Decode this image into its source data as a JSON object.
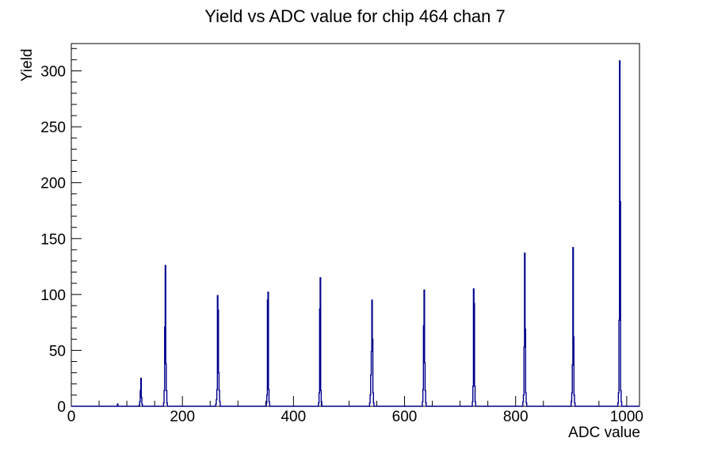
{
  "title": "Yield vs ADC value for chip 464 chan 7",
  "chart_data": {
    "type": "bar",
    "title": "Yield vs ADC value for chip 464 chan 7",
    "xlabel": "ADC value",
    "ylabel": "Yield",
    "xlim": [
      0,
      1023
    ],
    "ylim": [
      0,
      324.45
    ],
    "x_major_ticks": [
      0,
      200,
      400,
      600,
      800,
      1000
    ],
    "x_minor_step": 50,
    "y_major_ticks": [
      0,
      50,
      100,
      150,
      200,
      250,
      300
    ],
    "y_minor_step": 10,
    "grid": false,
    "legend": "none",
    "line_color": "#00008c",
    "frame_color": "#000000",
    "bin_width": 1,
    "bins": [
      [
        83,
        2
      ],
      [
        122,
        1
      ],
      [
        123,
        4
      ],
      [
        124,
        14
      ],
      [
        125,
        25
      ],
      [
        126,
        8
      ],
      [
        127,
        2
      ],
      [
        166,
        3
      ],
      [
        167,
        14
      ],
      [
        168,
        71
      ],
      [
        169,
        126
      ],
      [
        170,
        38
      ],
      [
        171,
        14
      ],
      [
        172,
        3
      ],
      [
        260,
        2
      ],
      [
        261,
        6
      ],
      [
        262,
        15
      ],
      [
        263,
        99
      ],
      [
        264,
        86
      ],
      [
        265,
        30
      ],
      [
        266,
        14
      ],
      [
        267,
        4
      ],
      [
        351,
        3
      ],
      [
        352,
        10
      ],
      [
        353,
        95
      ],
      [
        354,
        102
      ],
      [
        355,
        15
      ],
      [
        356,
        4
      ],
      [
        445,
        3
      ],
      [
        446,
        12
      ],
      [
        447,
        87
      ],
      [
        448,
        115
      ],
      [
        449,
        14
      ],
      [
        450,
        4
      ],
      [
        537,
        3
      ],
      [
        538,
        10
      ],
      [
        539,
        28
      ],
      [
        540,
        49
      ],
      [
        541,
        95
      ],
      [
        542,
        60
      ],
      [
        543,
        12
      ],
      [
        544,
        3
      ],
      [
        632,
        4
      ],
      [
        633,
        15
      ],
      [
        634,
        72
      ],
      [
        635,
        104
      ],
      [
        636,
        39
      ],
      [
        637,
        14
      ],
      [
        638,
        3
      ],
      [
        722,
        4
      ],
      [
        723,
        18
      ],
      [
        724,
        105
      ],
      [
        725,
        92
      ],
      [
        726,
        18
      ],
      [
        727,
        4
      ],
      [
        813,
        4
      ],
      [
        814,
        10
      ],
      [
        815,
        53
      ],
      [
        816,
        137
      ],
      [
        817,
        69
      ],
      [
        818,
        12
      ],
      [
        819,
        3
      ],
      [
        900,
        4
      ],
      [
        901,
        12
      ],
      [
        902,
        37
      ],
      [
        903,
        142
      ],
      [
        904,
        62
      ],
      [
        905,
        10
      ],
      [
        906,
        3
      ],
      [
        984,
        3
      ],
      [
        985,
        12
      ],
      [
        986,
        77
      ],
      [
        987,
        309
      ],
      [
        988,
        183
      ],
      [
        989,
        14
      ],
      [
        990,
        4
      ]
    ]
  }
}
